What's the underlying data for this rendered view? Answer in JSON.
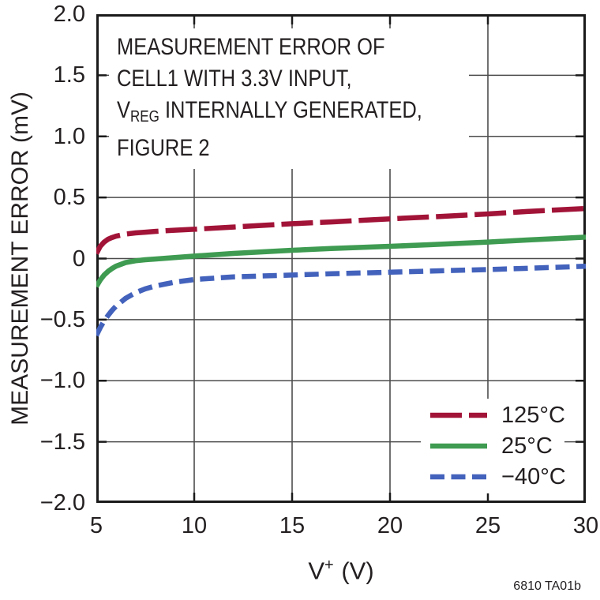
{
  "chart": {
    "y_axis_title": "MEASUREMENT ERROR (mV)",
    "x_axis_title": {
      "base": "V",
      "sup": "+",
      "rest": " (V)"
    },
    "y_tick_labels": [
      "2.0",
      "1.5",
      "1.0",
      "0.5",
      "0",
      "−0.5",
      "−1.0",
      "−1.5",
      "−2.0"
    ],
    "x_tick_labels": [
      "5",
      "10",
      "15",
      "20",
      "25",
      "30"
    ],
    "annotation": {
      "line1": "MEASUREMENT ERROR OF",
      "line2": "CELL1 WITH 3.3V INPUT,",
      "line3_base": "V",
      "line3_sub": "REG",
      "line3_rest": " INTERNALLY GENERATED,",
      "line4": "FIGURE 2"
    },
    "watermark": "6810 TA01b"
  },
  "chart_data": {
    "type": "line",
    "title": "",
    "annotation": "MEASUREMENT ERROR OF CELL1 WITH 3.3V INPUT, VREG INTERNALLY GENERATED, FIGURE 2",
    "xlabel": "V+ (V)",
    "ylabel": "MEASUREMENT ERROR (mV)",
    "xlim": [
      5,
      30
    ],
    "ylim": [
      -2.0,
      2.0
    ],
    "xticks": [
      5,
      10,
      15,
      20,
      25,
      30
    ],
    "yticks": [
      2.0,
      1.5,
      1.0,
      0.5,
      0,
      -0.5,
      -1.0,
      -1.5,
      -2.0
    ],
    "grid": true,
    "legend_position": "lower right",
    "watermark": "6810 TA01b",
    "x": [
      5,
      5.2,
      5.4,
      5.6,
      5.8,
      6,
      6.5,
      7,
      7.5,
      8,
      9,
      10,
      12,
      15,
      17,
      20,
      22,
      25,
      27,
      30
    ],
    "series": [
      {
        "name": "125°C",
        "color": "#A21338",
        "dash": [
          40,
          9
        ],
        "values": [
          0.04,
          0.1,
          0.135,
          0.158,
          0.172,
          0.183,
          0.2,
          0.21,
          0.216,
          0.222,
          0.232,
          0.24,
          0.258,
          0.285,
          0.3,
          0.325,
          0.34,
          0.365,
          0.385,
          0.41
        ]
      },
      {
        "name": "25°C",
        "color": "#3E9B51",
        "dash": null,
        "values": [
          -0.23,
          -0.175,
          -0.135,
          -0.105,
          -0.082,
          -0.063,
          -0.033,
          -0.018,
          -0.01,
          -0.004,
          0.008,
          0.02,
          0.042,
          0.068,
          0.082,
          0.1,
          0.113,
          0.135,
          0.152,
          0.175
        ]
      },
      {
        "name": "−40°C",
        "color": "#4362BC",
        "dash": [
          18,
          8.5
        ],
        "values": [
          -0.63,
          -0.565,
          -0.51,
          -0.465,
          -0.425,
          -0.39,
          -0.325,
          -0.28,
          -0.248,
          -0.225,
          -0.193,
          -0.172,
          -0.15,
          -0.135,
          -0.125,
          -0.112,
          -0.103,
          -0.09,
          -0.08,
          -0.063
        ]
      }
    ],
    "style": {
      "grid_color": "#4c4c4c",
      "axis_color": "#1a1a1a",
      "text_color": "#231F20",
      "line_width": 6.5
    }
  }
}
